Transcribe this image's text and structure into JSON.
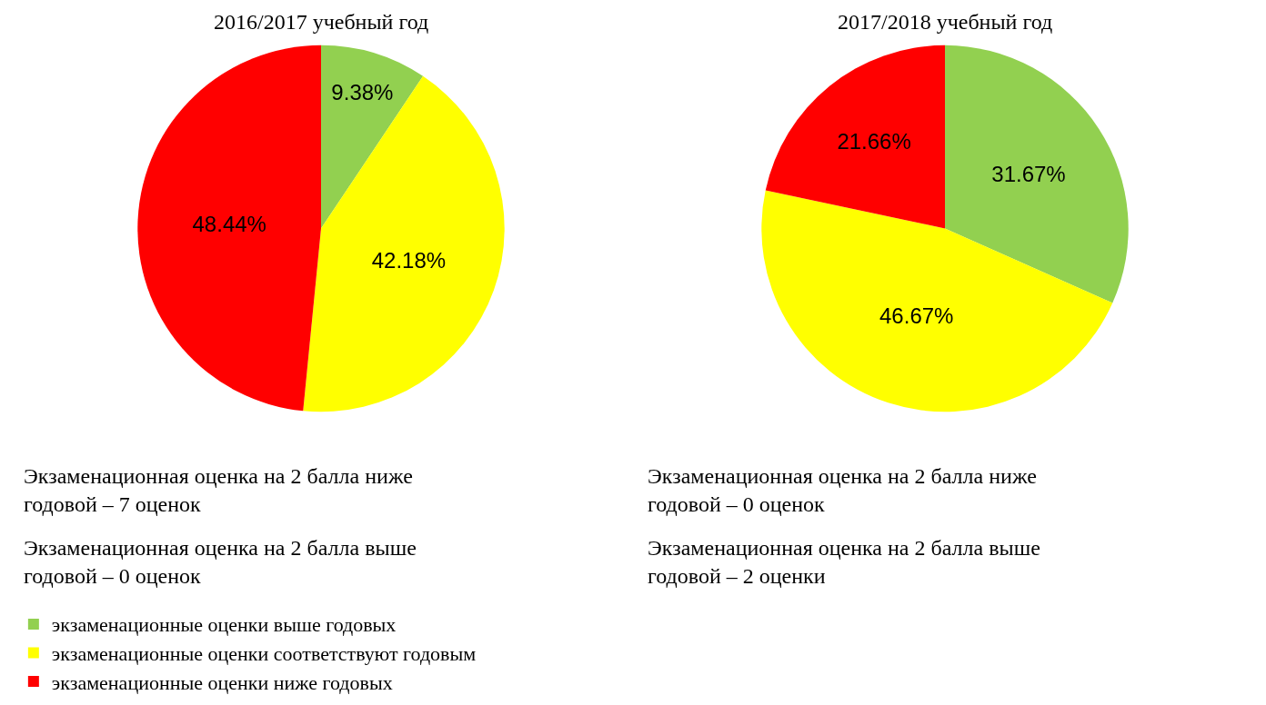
{
  "chart_data": [
    {
      "type": "pie",
      "title": "2016/2017 учебный год",
      "categories": [
        "экзаменационные оценки выше годовых",
        "экзаменационные оценки соответствуют годовым",
        "экзаменационные оценки ниже годовых"
      ],
      "values": [
        9.38,
        42.18,
        48.44
      ],
      "value_labels": [
        "9.38%",
        "42.18%",
        "48.44%"
      ],
      "colors": [
        "#92d050",
        "#ffff00",
        "#ff0000"
      ],
      "annotations": [
        "Экзаменационная оценка на 2 балла ниже\nгодовой – 7 оценок",
        "Экзаменационная оценка на 2 балла выше\nгодовой – 0 оценок"
      ],
      "legend": "bottom"
    },
    {
      "type": "pie",
      "title": "2017/2018 учебный год",
      "categories": [
        null,
        null,
        null
      ],
      "values": [
        31.67,
        46.67,
        21.66
      ],
      "value_labels": [
        "31.67%",
        "46.67%",
        "21.66%"
      ],
      "colors": [
        "#92d050",
        "#ffff00",
        "#ff0000"
      ],
      "annotations": [
        "Экзаменационная оценка на 2 балла ниже\nгодовой – 0 оценок",
        "Экзаменационная оценка на 2 балла выше\nгодовой – 2 оценки"
      ]
    }
  ]
}
